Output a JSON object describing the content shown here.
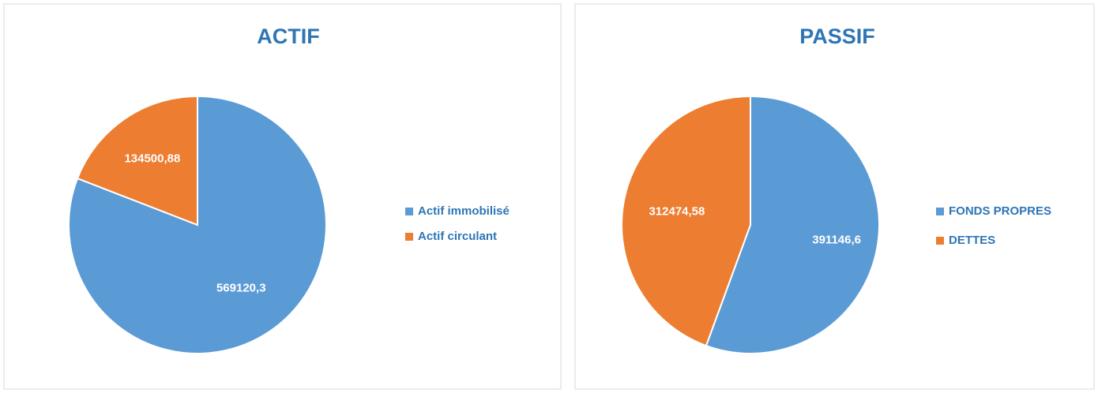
{
  "chart_data": [
    {
      "type": "pie",
      "title": "ACTIF",
      "categories": [
        "Actif immobilisé",
        "Actif circulant"
      ],
      "values": [
        569120.3,
        134500.88
      ],
      "value_labels": [
        "569120,3",
        "134500,88"
      ],
      "colors": [
        "#5b9bd5",
        "#ed7d31"
      ],
      "legend": "right"
    },
    {
      "type": "pie",
      "title": "PASSIF",
      "categories": [
        "FONDS PROPRES",
        "DETTES"
      ],
      "values": [
        391146.6,
        312474.58
      ],
      "value_labels": [
        "391146,6",
        "312474,58"
      ],
      "colors": [
        "#5b9bd5",
        "#ed7d31"
      ],
      "legend": "right"
    }
  ]
}
